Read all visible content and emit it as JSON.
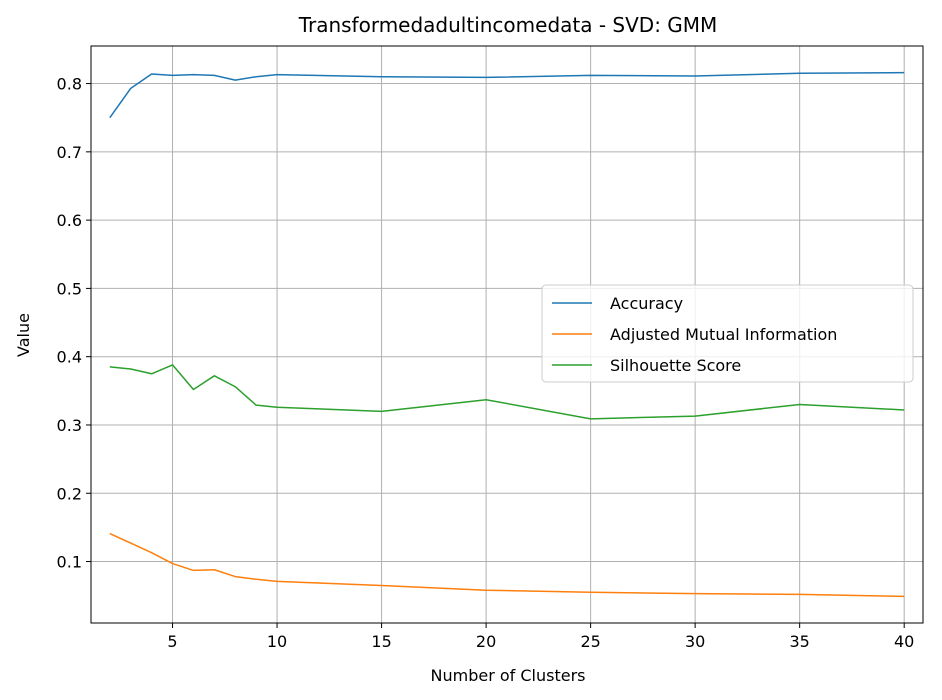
{
  "chart_data": {
    "type": "line",
    "title": "Transformedadultincomedata - SVD: GMM",
    "xlabel": "Number of Clusters",
    "ylabel": "Value",
    "xlim": [
      1.1,
      40.9
    ],
    "ylim": [
      0.01,
      0.855
    ],
    "xticks": [
      5,
      10,
      15,
      20,
      25,
      30,
      35,
      40
    ],
    "yticks": [
      0.1,
      0.2,
      0.3,
      0.4,
      0.5,
      0.6,
      0.7,
      0.8
    ],
    "grid": true,
    "legend_position": "center-right",
    "x": [
      2,
      3,
      4,
      5,
      6,
      7,
      8,
      9,
      10,
      15,
      20,
      25,
      30,
      35,
      40
    ],
    "series": [
      {
        "name": "Accuracy",
        "color": "#1f77b4",
        "values": [
          0.75,
          0.793,
          0.814,
          0.812,
          0.813,
          0.812,
          0.805,
          0.81,
          0.813,
          0.81,
          0.809,
          0.812,
          0.811,
          0.815,
          0.816
        ]
      },
      {
        "name": "Adjusted Mutual Information",
        "color": "#ff7f0e",
        "values": [
          0.141,
          0.127,
          0.113,
          0.097,
          0.087,
          0.088,
          0.078,
          0.074,
          0.071,
          0.065,
          0.058,
          0.055,
          0.053,
          0.052,
          0.049
        ]
      },
      {
        "name": "Silhouette Score",
        "color": "#2ca02c",
        "values": [
          0.385,
          0.382,
          0.375,
          0.388,
          0.352,
          0.372,
          0.356,
          0.329,
          0.326,
          0.32,
          0.337,
          0.309,
          0.313,
          0.33,
          0.322
        ]
      }
    ]
  }
}
